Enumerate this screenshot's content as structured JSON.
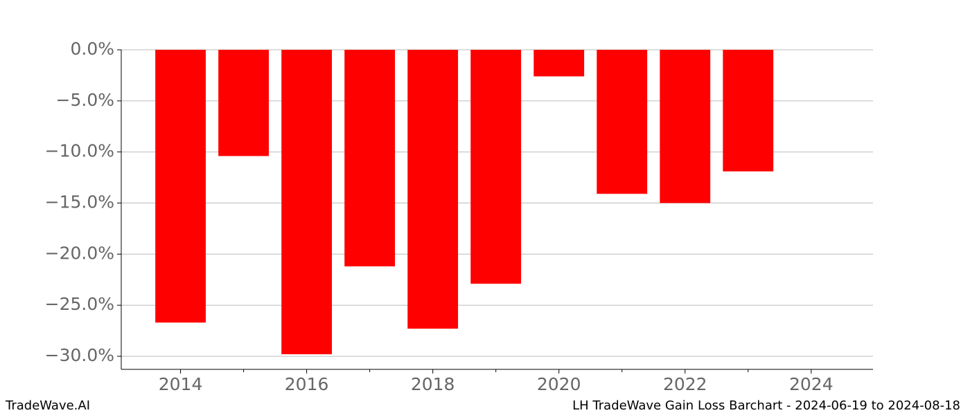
{
  "chart_data": {
    "type": "bar",
    "x": [
      2014,
      2015,
      2016,
      2017,
      2018,
      2019,
      2020,
      2021,
      2022,
      2023
    ],
    "values": [
      -26.7,
      -10.4,
      -29.8,
      -21.2,
      -27.3,
      -22.9,
      -2.6,
      -14.1,
      -15.0,
      -11.9
    ],
    "color": "#ff0000",
    "bar_width": 0.8,
    "xlim": [
      2013.06,
      2024.98
    ],
    "xticks": [
      2014,
      2016,
      2018,
      2020,
      2022,
      2024
    ],
    "xminorticks": [
      2015,
      2017,
      2019,
      2021,
      2023
    ],
    "ylim": [
      -31.28,
      0
    ],
    "yticks": [
      {
        "value": 0,
        "label": "0.0%"
      },
      {
        "value": -5,
        "label": "−5.0%"
      },
      {
        "value": -10,
        "label": "−10.0%"
      },
      {
        "value": -15,
        "label": "−15.0%"
      },
      {
        "value": -20,
        "label": "−20.0%"
      },
      {
        "value": -25,
        "label": "−25.0%"
      },
      {
        "value": -30,
        "label": "−30.0%"
      }
    ],
    "grid": true,
    "watermark": "TradeWave.AI",
    "footer": "LH TradeWave Gain Loss Barchart - 2024-06-19 to 2024-08-18"
  }
}
